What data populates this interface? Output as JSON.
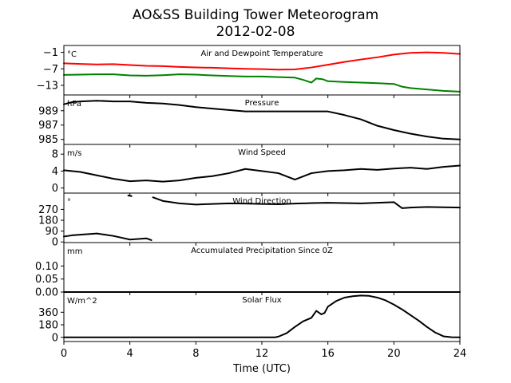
{
  "title": "AO&SS Building Tower Meteorogram",
  "subtitle": "2012-02-08",
  "chart_data": {
    "type": "line",
    "title": "AO&SS Building Tower Meteorogram",
    "subtitle": "2012-02-08",
    "xlabel": "Time (UTC)",
    "xlim": [
      0,
      24
    ],
    "xticks": [
      0,
      4,
      8,
      12,
      16,
      20,
      24
    ],
    "panels": [
      {
        "key": "temp",
        "title": "Air and Dewpoint Temperature",
        "unit": "°C",
        "ylim": [
          -16.5,
          1.5
        ],
        "yticks": [
          -1,
          -7,
          -13
        ],
        "ytick_labels": [
          "−1",
          "−7",
          "−13"
        ],
        "series": [
          {
            "color": "#ff0000",
            "x": [
              0,
              1,
              2,
              3,
              4,
              5,
              6,
              7,
              8,
              9,
              10,
              11,
              12,
              13,
              14,
              15,
              16,
              17,
              18,
              19,
              20,
              21,
              22,
              23,
              24
            ],
            "y": [
              -5.0,
              -5.2,
              -5.4,
              -5.3,
              -5.6,
              -5.9,
              -6.0,
              -6.3,
              -6.5,
              -6.6,
              -6.8,
              -7.0,
              -7.1,
              -7.3,
              -7.2,
              -6.5,
              -5.5,
              -4.5,
              -3.6,
              -2.8,
              -1.8,
              -1.2,
              -1.0,
              -1.2,
              -1.6
            ]
          },
          {
            "color": "#008000",
            "x": [
              0,
              1,
              2,
              3,
              4,
              5,
              6,
              7,
              8,
              9,
              10,
              11,
              12,
              13,
              14,
              14.5,
              15,
              15.3,
              15.7,
              16,
              17,
              18,
              19,
              20,
              20.5,
              21,
              22,
              23,
              24
            ],
            "y": [
              -9.2,
              -9.1,
              -9.0,
              -9.0,
              -9.4,
              -9.5,
              -9.3,
              -9.0,
              -9.1,
              -9.4,
              -9.6,
              -9.8,
              -9.8,
              -10.0,
              -10.2,
              -11.0,
              -12.0,
              -10.5,
              -10.8,
              -11.5,
              -11.8,
              -12.0,
              -12.2,
              -12.5,
              -13.5,
              -14.0,
              -14.5,
              -15.0,
              -15.3
            ]
          }
        ]
      },
      {
        "key": "press",
        "title": "Pressure",
        "unit": "hPa",
        "ylim": [
          984.3,
          991.2
        ],
        "yticks": [
          989,
          987,
          985
        ],
        "series": [
          {
            "color": "#000000",
            "x": [
              0,
              0.5,
              1,
              2,
              3,
              4,
              5,
              6,
              7,
              8,
              9,
              10,
              11,
              12,
              13,
              14,
              15,
              16,
              17,
              18,
              19,
              20,
              21,
              22,
              23,
              24
            ],
            "y": [
              989.9,
              990.2,
              990.3,
              990.4,
              990.3,
              990.3,
              990.1,
              990.0,
              989.8,
              989.5,
              989.3,
              989.1,
              988.9,
              988.9,
              988.9,
              988.9,
              988.9,
              988.9,
              988.4,
              987.8,
              986.9,
              986.3,
              985.8,
              985.4,
              985.1,
              985.0
            ]
          }
        ]
      },
      {
        "key": "wspd",
        "title": "Wind Speed",
        "unit": "m/s",
        "ylim": [
          -1.2,
          10.3
        ],
        "yticks": [
          8,
          4,
          0
        ],
        "series": [
          {
            "color": "#000000",
            "x": [
              0,
              1,
              2,
              3,
              4,
              5,
              6,
              7,
              8,
              9,
              10,
              11,
              12,
              13,
              14,
              15,
              16,
              17,
              18,
              19,
              20,
              21,
              22,
              23,
              24
            ],
            "y": [
              4.2,
              3.8,
              3.0,
              2.2,
              1.6,
              1.8,
              1.5,
              1.8,
              2.4,
              2.8,
              3.5,
              4.5,
              4.0,
              3.5,
              2.0,
              3.5,
              4.0,
              4.2,
              4.5,
              4.3,
              4.6,
              4.8,
              4.5,
              5.0,
              5.3
            ]
          }
        ]
      },
      {
        "key": "wdir",
        "title": "Wind Direction",
        "unit": "°",
        "ylim": [
          -5,
          405
        ],
        "yticks": [
          270,
          180,
          90,
          0
        ],
        "series": [
          {
            "color": "#000000",
            "x": [
              0,
              0.5,
              1,
              1.5,
              2,
              2.5,
              3,
              3.5,
              4,
              4.5,
              5,
              5.3
            ],
            "y": [
              45,
              55,
              60,
              65,
              70,
              60,
              50,
              35,
              20,
              25,
              30,
              15
            ]
          },
          {
            "color": "#000000",
            "x": [
              3.9,
              4.1
            ],
            "y": [
              385,
              380
            ]
          },
          {
            "color": "#000000",
            "x": [
              5.4,
              6,
              7,
              8,
              9,
              10,
              11,
              12,
              13,
              14,
              15,
              16,
              17,
              18,
              19,
              20,
              20.5,
              21,
              22,
              23,
              24
            ],
            "y": [
              370,
              340,
              320,
              310,
              315,
              320,
              318,
              315,
              312,
              318,
              322,
              325,
              322,
              320,
              325,
              330,
              280,
              285,
              290,
              288,
              285
            ]
          }
        ]
      },
      {
        "key": "precip",
        "title": "Accumulated Precipitation Since 0Z",
        "unit": "mm",
        "ylim": [
          0,
          0.19
        ],
        "yticks": [
          0.1,
          0.05,
          0.0
        ],
        "ytick_labels": [
          "0.10",
          "0.05",
          "0.00"
        ],
        "series": [
          {
            "color": "#000000",
            "x": [
              0,
              24
            ],
            "y": [
              0,
              0
            ]
          }
        ]
      },
      {
        "key": "solar",
        "title": "Solar Flux",
        "unit": "W/m^2",
        "ylim": [
          -60,
          650
        ],
        "yticks": [
          360,
          180,
          0
        ],
        "series": [
          {
            "color": "#000000",
            "x": [
              0,
              12,
              12.8,
              13,
              13.5,
              14,
              14.5,
              15,
              15.3,
              15.6,
              15.8,
              16,
              16.5,
              17,
              17.5,
              18,
              18.5,
              19,
              19.5,
              20,
              20.5,
              21,
              21.5,
              22,
              22.5,
              23,
              23.5,
              24
            ],
            "y": [
              0,
              0,
              0,
              10,
              60,
              150,
              230,
              280,
              380,
              330,
              350,
              440,
              520,
              570,
              590,
              600,
              595,
              570,
              530,
              470,
              400,
              320,
              240,
              150,
              70,
              15,
              2,
              0
            ]
          }
        ]
      }
    ]
  }
}
